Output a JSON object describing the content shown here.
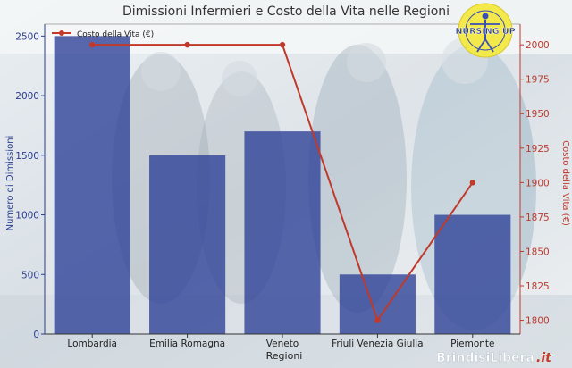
{
  "chart_data": {
    "type": "bar+line",
    "title": "Dimissioni Infermieri e Costo della Vita nelle Regioni",
    "xlabel": "Regioni",
    "ylabel_left": "Numero di Dimissioni",
    "ylabel_right": "Costo della Vita (€)",
    "categories": [
      "Lombardia",
      "Emilia Romagna",
      "Veneto",
      "Friuli Venezia Giulia",
      "Piemonte"
    ],
    "series": [
      {
        "kind": "bar",
        "axis": "left",
        "values": [
          2500,
          1500,
          1700,
          500,
          1000
        ]
      },
      {
        "kind": "line",
        "axis": "right",
        "name": "Costo della Vita (€)",
        "values": [
          2000,
          2000,
          2000,
          1800,
          1900
        ]
      }
    ],
    "ylim_left": [
      0,
      2600
    ],
    "yticks_left": [
      0,
      500,
      1000,
      1500,
      2000,
      2500
    ],
    "ylim_right": [
      1790,
      2015
    ],
    "yticks_right": [
      1800,
      1825,
      1850,
      1875,
      1900,
      1925,
      1950,
      1975,
      2000
    ],
    "legend_position": "top-left",
    "grid": false,
    "colors": {
      "bar": "#2b3f96",
      "line": "#c0392b",
      "left_axis": "#2a3d8f",
      "right_axis": "#c0392b",
      "title": "#333333"
    }
  },
  "watermark": {
    "logo_text": "NURSING UP",
    "brand_text": "Brindisi",
    "brand_text_accent": "Libera",
    "brand_suffix": ".it"
  }
}
